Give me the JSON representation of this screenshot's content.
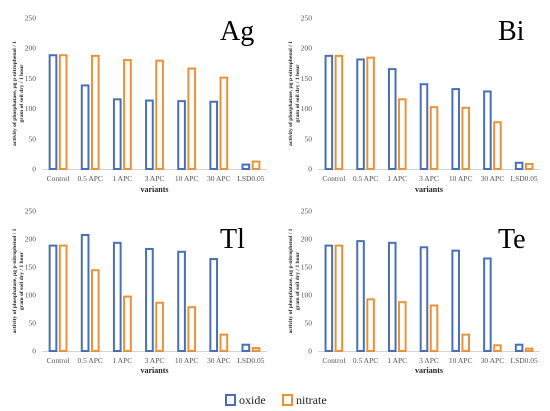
{
  "colors": {
    "oxide": "#4a6fb5",
    "nitrate": "#e8923a"
  },
  "legend": {
    "oxide": "oxide",
    "nitrate": "nitrate"
  },
  "chart_data": [
    {
      "type": "bar",
      "title": "Ag",
      "xlabel": "variants",
      "ylabel": "activity of phosphatase, µg p-nitrophenol / 1 gram of soil dry / 1 hour",
      "ylim": [
        0,
        250
      ],
      "yticks": [
        0,
        50,
        100,
        150,
        200,
        250
      ],
      "categories": [
        "Control",
        "0.5 APC",
        "1 APC",
        "3 APC",
        "10 APC",
        "30 APC",
        "LSD0.05"
      ],
      "series": [
        {
          "name": "oxide",
          "values": [
            190,
            140,
            117,
            115,
            114,
            113,
            9
          ]
        },
        {
          "name": "nitrate",
          "values": [
            190,
            189,
            182,
            181,
            168,
            153,
            14
          ]
        }
      ]
    },
    {
      "type": "bar",
      "title": "Bi",
      "xlabel": "variants",
      "ylabel": "activity of phosphatase, µg p-nitrophenol / 1 gram of soil dry / 1 hour",
      "ylim": [
        0,
        250
      ],
      "yticks": [
        0,
        50,
        100,
        150,
        200,
        250
      ],
      "categories": [
        "Control",
        "0.5 APC",
        "1 APC",
        "3 APC",
        "10 APC",
        "30 APC",
        "LSD0.05"
      ],
      "series": [
        {
          "name": "oxide",
          "values": [
            189,
            183,
            167,
            142,
            134,
            130,
            12
          ]
        },
        {
          "name": "nitrate",
          "values": [
            189,
            186,
            117,
            104,
            103,
            79,
            10
          ]
        }
      ]
    },
    {
      "type": "bar",
      "title": "Tl",
      "xlabel": "variants",
      "ylabel": "activity of phosphatase, µg p-nitrophenol / 1 gram of soil dry / 1 hour",
      "ylim": [
        0,
        250
      ],
      "yticks": [
        0,
        50,
        100,
        150,
        200,
        250
      ],
      "categories": [
        "Control",
        "0.5 APC",
        "1 APC",
        "3 APC",
        "10 APC",
        "30 APC",
        "LSD0.05"
      ],
      "series": [
        {
          "name": "oxide",
          "values": [
            190,
            209,
            195,
            184,
            179,
            166,
            13
          ]
        },
        {
          "name": "nitrate",
          "values": [
            190,
            146,
            99,
            88,
            80,
            31,
            7
          ]
        }
      ]
    },
    {
      "type": "bar",
      "title": "Te",
      "xlabel": "variants",
      "ylabel": "activity of phosphatase, µg p-nitrophenol / 1 gram of soil dry / 1 hour",
      "ylim": [
        0,
        250
      ],
      "yticks": [
        0,
        50,
        100,
        150,
        200,
        250
      ],
      "categories": [
        "Control",
        "0.5 APC",
        "1 APC",
        "3 APC",
        "10 APC",
        "30 APC",
        "LSD0.05"
      ],
      "series": [
        {
          "name": "oxide",
          "values": [
            190,
            198,
            195,
            187,
            181,
            167,
            13
          ]
        },
        {
          "name": "nitrate",
          "values": [
            190,
            94,
            89,
            83,
            31,
            12,
            6
          ]
        }
      ]
    }
  ]
}
